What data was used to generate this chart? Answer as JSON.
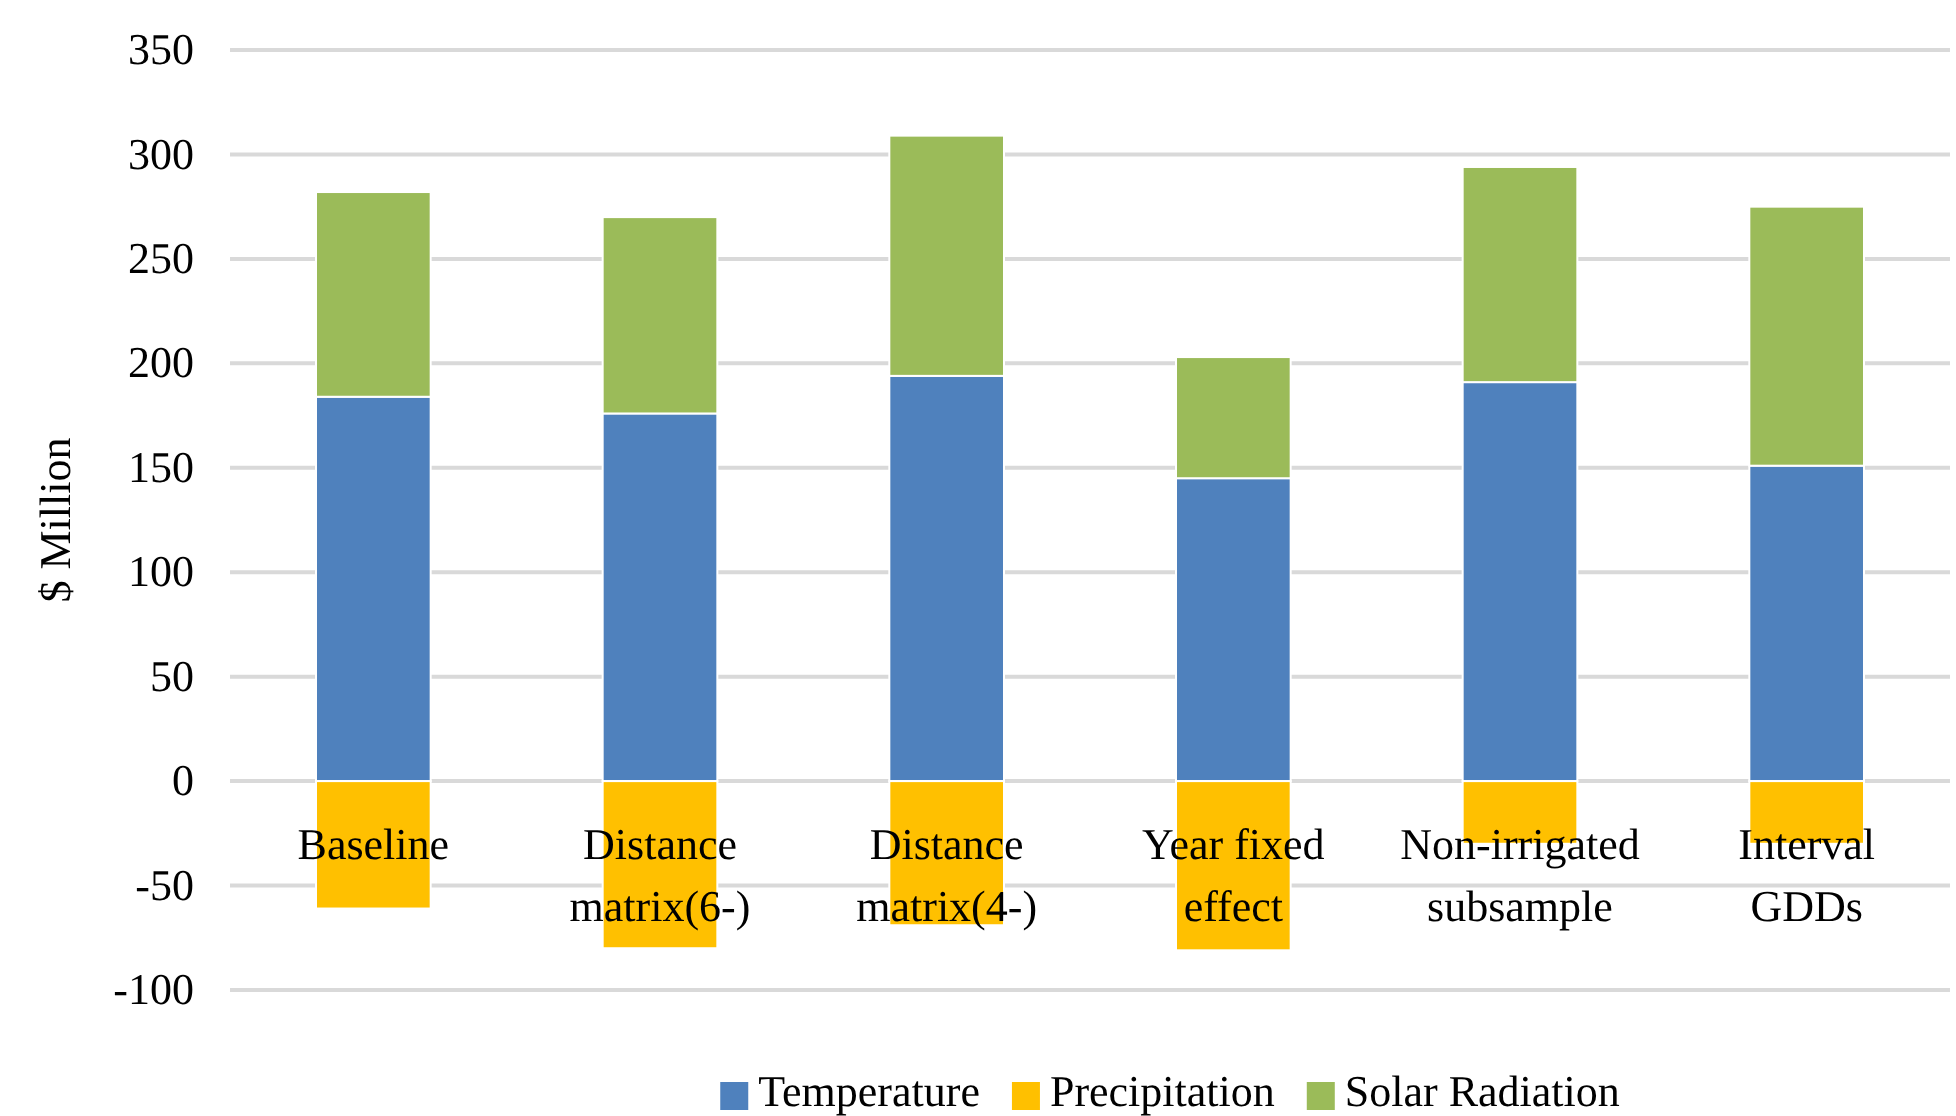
{
  "chart_data": {
    "type": "bar",
    "stacked": true,
    "ylabel": "$ Million",
    "categories": [
      "Baseline",
      "Distance matrix(6-)",
      "Distance matrix(4-)",
      "Year fixed effect",
      "Non-irrigated subsample",
      "Interval GDDs"
    ],
    "series": [
      {
        "name": "Temperature",
        "color": "#4f81bd",
        "values": [
          184,
          176,
          194,
          145,
          191,
          151
        ]
      },
      {
        "name": "Precipitation",
        "color": "#ffc000",
        "values": [
          -61,
          -80,
          -69,
          -81,
          -30,
          -30
        ]
      },
      {
        "name": "Solar Radiation",
        "color": "#9bbb59",
        "values": [
          98,
          94,
          115,
          58,
          103,
          124
        ]
      }
    ],
    "ylim": [
      -100,
      350
    ],
    "yticks": [
      -100,
      -50,
      0,
      50,
      100,
      150,
      200,
      250,
      300,
      350
    ],
    "grid": "y",
    "legend": "bottom"
  }
}
